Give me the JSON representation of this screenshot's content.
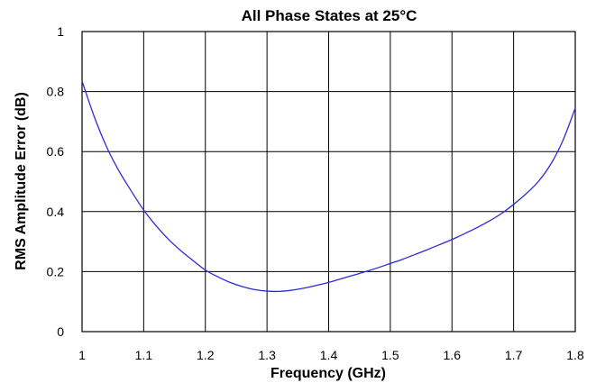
{
  "chart_data": {
    "type": "line",
    "title": "All Phase States at 25°C",
    "xlabel": "Frequency (GHz)",
    "ylabel": "RMS Amplitude Error (dB)",
    "xlim": [
      1,
      1.8
    ],
    "ylim": [
      0,
      1
    ],
    "x_ticks": [
      1,
      1.1,
      1.2,
      1.3,
      1.4,
      1.5,
      1.6,
      1.7,
      1.8
    ],
    "x_tick_labels": [
      "1",
      "1.1",
      "1.2",
      "1.3",
      "1.4",
      "1.5",
      "1.6",
      "1.7",
      "1.8"
    ],
    "y_ticks": [
      0,
      0.2,
      0.4,
      0.6,
      0.8,
      1
    ],
    "y_tick_labels": [
      "0",
      "0.2",
      "0.4",
      "0.6",
      "0.8",
      "1"
    ],
    "grid": true,
    "legend": "none",
    "series": [
      {
        "color": "#2b2bdc",
        "x": [
          1.0,
          1.02,
          1.04,
          1.06,
          1.08,
          1.1,
          1.12,
          1.14,
          1.16,
          1.18,
          1.2,
          1.22,
          1.24,
          1.26,
          1.28,
          1.3,
          1.32,
          1.34,
          1.36,
          1.38,
          1.4,
          1.42,
          1.44,
          1.46,
          1.48,
          1.5,
          1.52,
          1.54,
          1.56,
          1.58,
          1.6,
          1.62,
          1.64,
          1.66,
          1.68,
          1.7,
          1.72,
          1.74,
          1.76,
          1.78,
          1.8
        ],
        "y": [
          0.835,
          0.715,
          0.615,
          0.535,
          0.468,
          0.405,
          0.353,
          0.308,
          0.27,
          0.237,
          0.205,
          0.183,
          0.164,
          0.15,
          0.14,
          0.135,
          0.134,
          0.138,
          0.145,
          0.154,
          0.164,
          0.176,
          0.188,
          0.2,
          0.213,
          0.227,
          0.241,
          0.257,
          0.273,
          0.29,
          0.307,
          0.326,
          0.346,
          0.368,
          0.393,
          0.424,
          0.459,
          0.5,
          0.557,
          0.637,
          0.745
        ]
      }
    ]
  }
}
